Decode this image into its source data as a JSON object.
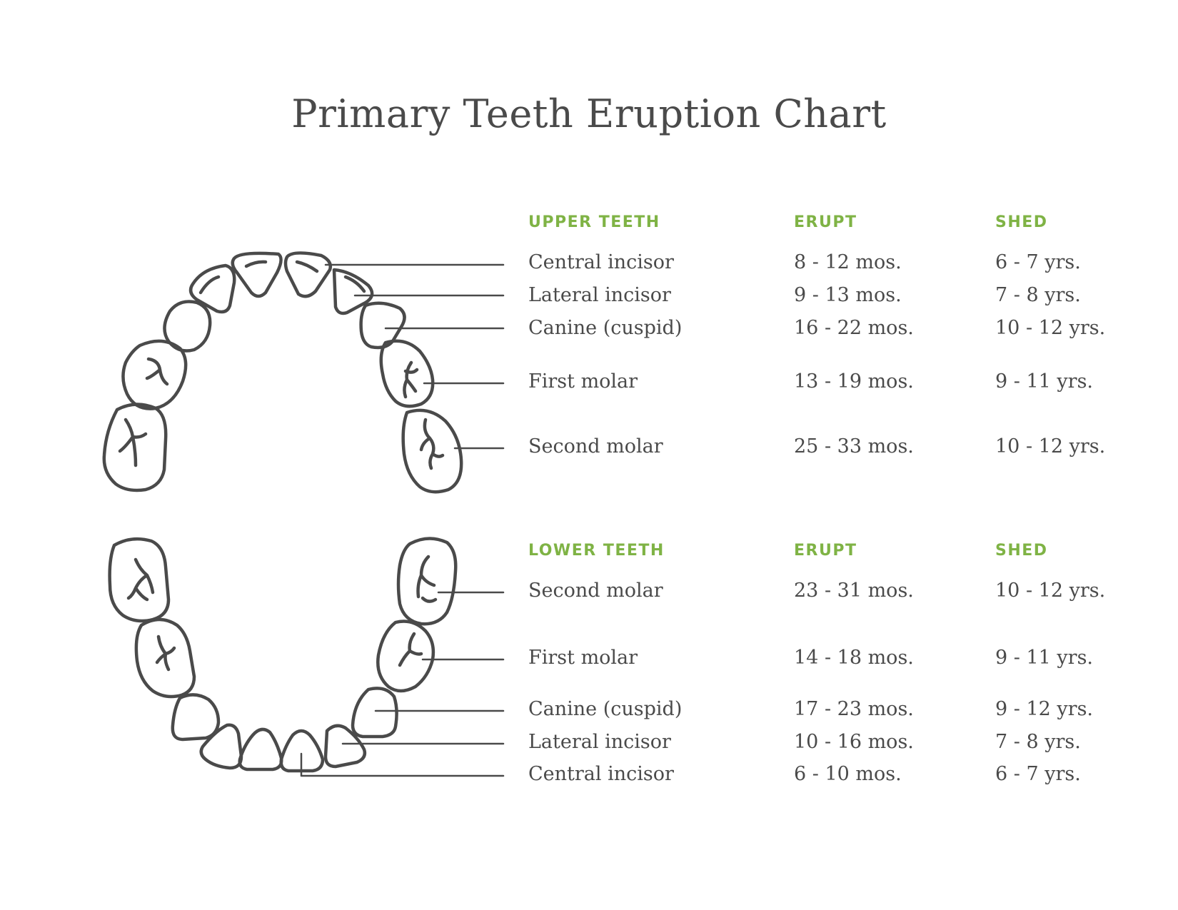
{
  "title": "Primary Teeth Eruption Chart",
  "colors": {
    "accent": "#7fb345",
    "text": "#4a4a4a",
    "outline": "#4a4a4a"
  },
  "upper": {
    "headers": {
      "name": "UPPER TEETH",
      "erupt": "ERUPT",
      "shed": "SHED"
    },
    "rows": [
      {
        "name": "Central incisor",
        "erupt": "8 - 12 mos.",
        "shed": "6 - 7 yrs."
      },
      {
        "name": "Lateral incisor",
        "erupt": "9 - 13 mos.",
        "shed": "7 - 8 yrs."
      },
      {
        "name": "Canine (cuspid)",
        "erupt": "16 - 22 mos.",
        "shed": "10 - 12 yrs."
      },
      {
        "name": "First molar",
        "erupt": "13 - 19 mos.",
        "shed": "9 - 11 yrs."
      },
      {
        "name": "Second molar",
        "erupt": "25 - 33 mos.",
        "shed": "10 - 12 yrs."
      }
    ]
  },
  "lower": {
    "headers": {
      "name": "LOWER TEETH",
      "erupt": "ERUPT",
      "shed": "SHED"
    },
    "rows": [
      {
        "name": "Second molar",
        "erupt": "23 - 31 mos.",
        "shed": "10 - 12 yrs."
      },
      {
        "name": "First molar",
        "erupt": "14 - 18 mos.",
        "shed": "9 - 11 yrs."
      },
      {
        "name": "Canine (cuspid)",
        "erupt": "17 - 23 mos.",
        "shed": "9 - 12 yrs."
      },
      {
        "name": "Lateral incisor",
        "erupt": "10 - 16 mos.",
        "shed": "7 - 8 yrs."
      },
      {
        "name": "Central incisor",
        "erupt": "6 - 10 mos.",
        "shed": "6 - 7 yrs."
      }
    ]
  }
}
